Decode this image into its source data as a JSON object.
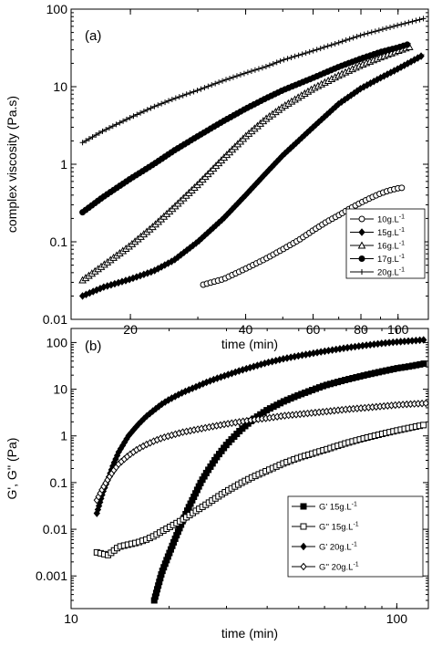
{
  "chart_data": [
    {
      "type": "scatter",
      "panel_label": "(a)",
      "xlabel": "time (min)",
      "ylabel": "complex viscosity (Pa.s)",
      "xscale": "log",
      "yscale": "log",
      "xlim": [
        14,
        120
      ],
      "ylim": [
        0.01,
        100
      ],
      "xticks": [
        {
          "v": 20,
          "label": "20"
        },
        {
          "v": 40,
          "label": "40"
        },
        {
          "v": 60,
          "label": "60"
        },
        {
          "v": 80,
          "label": "80"
        },
        {
          "v": 100,
          "label": "100"
        }
      ],
      "yticks": [
        {
          "v": 0.01,
          "label": "0.01"
        },
        {
          "v": 0.1,
          "label": "0.1"
        },
        {
          "v": 1,
          "label": "1"
        },
        {
          "v": 10,
          "label": "10"
        },
        {
          "v": 100,
          "label": "100"
        }
      ],
      "legend_position": "bottom-right",
      "series": [
        {
          "name": "10g.L",
          "sup": "-1",
          "marker": "circle-open",
          "x": [
            31,
            35,
            40,
            45,
            50,
            55,
            60,
            65,
            70,
            75,
            80,
            85,
            90,
            95,
            100,
            104
          ],
          "y": [
            0.028,
            0.033,
            0.045,
            0.06,
            0.08,
            0.105,
            0.14,
            0.18,
            0.22,
            0.27,
            0.32,
            0.37,
            0.42,
            0.46,
            0.49,
            0.5
          ]
        },
        {
          "name": "15g.L",
          "sup": "-1",
          "marker": "diamond-filled",
          "x": [
            15,
            17,
            20,
            23,
            26,
            30,
            35,
            40,
            45,
            50,
            60,
            70,
            80,
            90,
            100,
            110,
            117
          ],
          "y": [
            0.02,
            0.026,
            0.033,
            0.042,
            0.058,
            0.1,
            0.2,
            0.4,
            0.75,
            1.3,
            3.0,
            6.0,
            9.5,
            13,
            17,
            22,
            26
          ]
        },
        {
          "name": "16g.L",
          "sup": "-1",
          "marker": "triangle-open",
          "x": [
            15,
            17,
            20,
            23,
            26,
            30,
            35,
            40,
            45,
            50,
            60,
            70,
            80,
            90,
            100,
            108
          ],
          "y": [
            0.032,
            0.05,
            0.09,
            0.16,
            0.28,
            0.55,
            1.2,
            2.3,
            3.8,
            5.5,
            9.5,
            14,
            19,
            24,
            29,
            33
          ]
        },
        {
          "name": "17g.L",
          "sup": "-1",
          "marker": "circle-filled",
          "x": [
            15,
            17,
            20,
            23,
            26,
            30,
            35,
            40,
            45,
            50,
            60,
            70,
            80,
            90,
            100,
            108
          ],
          "y": [
            0.24,
            0.38,
            0.65,
            1.0,
            1.5,
            2.3,
            3.6,
            5.2,
            7.0,
            9.0,
            13,
            18,
            23,
            28,
            32,
            36
          ]
        },
        {
          "name": "20g.L",
          "sup": "-1",
          "marker": "plus",
          "x": [
            15,
            17,
            20,
            23,
            26,
            30,
            35,
            40,
            45,
            50,
            60,
            70,
            80,
            90,
            100,
            110,
            117
          ],
          "y": [
            1.9,
            2.7,
            4.0,
            5.5,
            7.0,
            9.0,
            12,
            15,
            18,
            22,
            29,
            37,
            46,
            54,
            62,
            70,
            76
          ]
        }
      ]
    },
    {
      "type": "scatter",
      "panel_label": "(b)",
      "xlabel": "time (min)",
      "ylabel": "G', G'' (Pa)",
      "xscale": "log",
      "yscale": "log",
      "xlim": [
        10,
        125
      ],
      "ylim": [
        0.0002,
        200
      ],
      "xticks": [
        {
          "v": 10,
          "label": "10"
        },
        {
          "v": 100,
          "label": "100"
        }
      ],
      "yticks": [
        {
          "v": 0.001,
          "label": "0.001"
        },
        {
          "v": 0.01,
          "label": "0.01"
        },
        {
          "v": 0.1,
          "label": "0.1"
        },
        {
          "v": 1,
          "label": "1"
        },
        {
          "v": 10,
          "label": "10"
        },
        {
          "v": 100,
          "label": "100"
        }
      ],
      "legend_position": "bottom-right",
      "series": [
        {
          "name": "G' 15g.L",
          "sup": "-1",
          "marker": "square-filled",
          "x": [
            18,
            19,
            20,
            21,
            22,
            23,
            24,
            25,
            26,
            28,
            30,
            33,
            36,
            40,
            45,
            50,
            60,
            70,
            80,
            90,
            100,
            110,
            123
          ],
          "y": [
            0.0003,
            0.0012,
            0.003,
            0.007,
            0.015,
            0.03,
            0.055,
            0.1,
            0.16,
            0.35,
            0.65,
            1.3,
            2.2,
            3.6,
            5.5,
            7.5,
            12,
            16,
            20,
            24,
            28,
            31,
            36
          ]
        },
        {
          "name": "G'' 15g.L",
          "sup": "-1",
          "marker": "square-open",
          "x": [
            12,
            13,
            14,
            15,
            16,
            17,
            18,
            19,
            20,
            22,
            24,
            26,
            28,
            30,
            33,
            36,
            40,
            45,
            50,
            60,
            70,
            80,
            90,
            100,
            110,
            123
          ],
          "y": [
            0.0032,
            0.0028,
            0.0042,
            0.0047,
            0.0052,
            0.006,
            0.0072,
            0.009,
            0.011,
            0.016,
            0.024,
            0.034,
            0.048,
            0.065,
            0.095,
            0.13,
            0.18,
            0.26,
            0.34,
            0.5,
            0.7,
            0.9,
            1.1,
            1.3,
            1.5,
            1.75
          ]
        },
        {
          "name": "G' 20g.L",
          "sup": "-1",
          "marker": "diamond-filled",
          "x": [
            12,
            12.5,
            13,
            13.5,
            14,
            15,
            16,
            17,
            18,
            19,
            20,
            22,
            24,
            26,
            28,
            30,
            33,
            36,
            40,
            45,
            50,
            60,
            70,
            80,
            90,
            100,
            110,
            123
          ],
          "y": [
            0.022,
            0.06,
            0.12,
            0.25,
            0.45,
            1.0,
            1.7,
            2.6,
            3.6,
            4.8,
            6.0,
            8.5,
            11,
            14,
            17,
            20,
            25,
            30,
            37,
            45,
            52,
            65,
            77,
            87,
            96,
            103,
            108,
            115
          ]
        },
        {
          "name": "G'' 20g.L",
          "sup": "-1",
          "marker": "diamond-open",
          "x": [
            12,
            12.5,
            13,
            13.5,
            14,
            15,
            16,
            17,
            18,
            19,
            20,
            22,
            24,
            26,
            28,
            30,
            33,
            36,
            40,
            45,
            50,
            60,
            70,
            80,
            90,
            100,
            110,
            123
          ],
          "y": [
            0.042,
            0.075,
            0.12,
            0.18,
            0.25,
            0.38,
            0.52,
            0.65,
            0.78,
            0.9,
            1.0,
            1.2,
            1.35,
            1.5,
            1.65,
            1.8,
            2.0,
            2.2,
            2.4,
            2.7,
            2.9,
            3.3,
            3.7,
            4.0,
            4.3,
            4.6,
            4.8,
            5.0
          ]
        }
      ]
    }
  ]
}
